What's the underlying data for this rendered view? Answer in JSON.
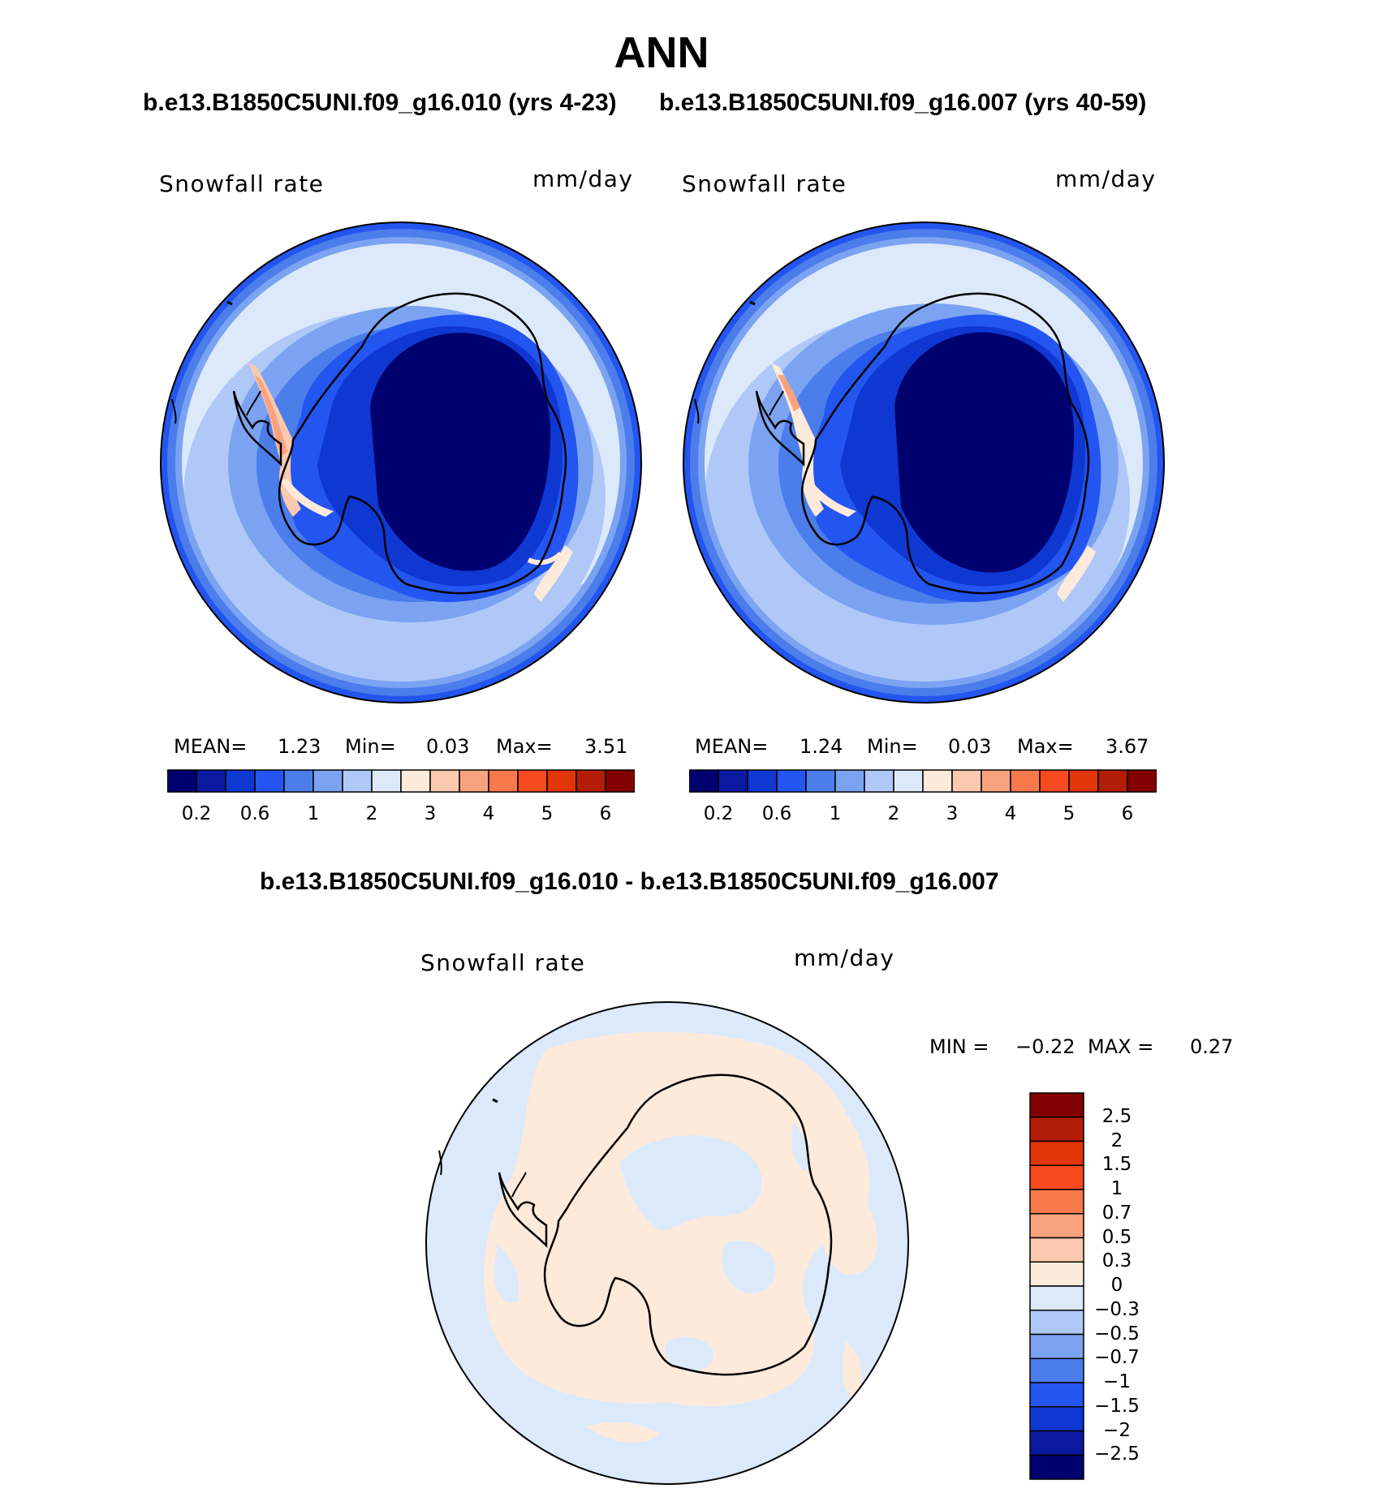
{
  "title": "ANN",
  "panels": [
    {
      "case_title": "b.e13.B1850C5UNI.f09_g16.010 (yrs 4-23)",
      "variable": "Snowfall rate",
      "units": "mm/day",
      "stats": {
        "mean_label": "MEAN=",
        "mean": "1.23",
        "min_label": "Min=",
        "min": "0.03",
        "max_label": "Max=",
        "max": "3.51"
      }
    },
    {
      "case_title": "b.e13.B1850C5UNI.f09_g16.007 (yrs 40-59)",
      "variable": "Snowfall rate",
      "units": "mm/day",
      "stats": {
        "mean_label": "MEAN=",
        "mean": "1.24",
        "min_label": "Min=",
        "min": "0.03",
        "max_label": "Max=",
        "max": "3.67"
      }
    }
  ],
  "colorbar": {
    "tick_labels": [
      "0.2",
      "0.6",
      "1",
      "2",
      "3",
      "4",
      "5",
      "6"
    ],
    "colors": [
      "#00006e",
      "#0a19a0",
      "#0f37d2",
      "#2355f0",
      "#4b7deb",
      "#7ba3f2",
      "#afc8f8",
      "#dce9fb",
      "#fdeadb",
      "#fbc9b0",
      "#f9a27e",
      "#f87a4c",
      "#f64b1e",
      "#e23508",
      "#b31d07",
      "#830003"
    ]
  },
  "diff": {
    "title": "b.e13.B1850C5UNI.f09_g16.010 - b.e13.B1850C5UNI.f09_g16.007",
    "variable": "Snowfall rate",
    "units": "mm/day",
    "min_label": "MIN =",
    "min": "−0.22",
    "max_label": "MAX =",
    "max": "0.27",
    "colorbar_labels": [
      "2.5",
      "2",
      "1.5",
      "1",
      "0.7",
      "0.5",
      "0.3",
      "0",
      "−0.3",
      "−0.5",
      "−0.7",
      "−1",
      "−1.5",
      "−2",
      "−2.5"
    ],
    "colorbar_colors": [
      "#830003",
      "#b31d07",
      "#e23508",
      "#f64b1e",
      "#f87a4c",
      "#f9a27e",
      "#fbc9b0",
      "#fdeadb",
      "#dce9fb",
      "#afc8f8",
      "#7ba3f2",
      "#4b7deb",
      "#2355f0",
      "#0f37d2",
      "#0a19a0",
      "#00006e"
    ]
  },
  "colors": {
    "land_outline": "#000000",
    "ocean_light": "#afc8f8",
    "positive_light": "#fdeadb",
    "negative_light": "#dce9fb"
  }
}
